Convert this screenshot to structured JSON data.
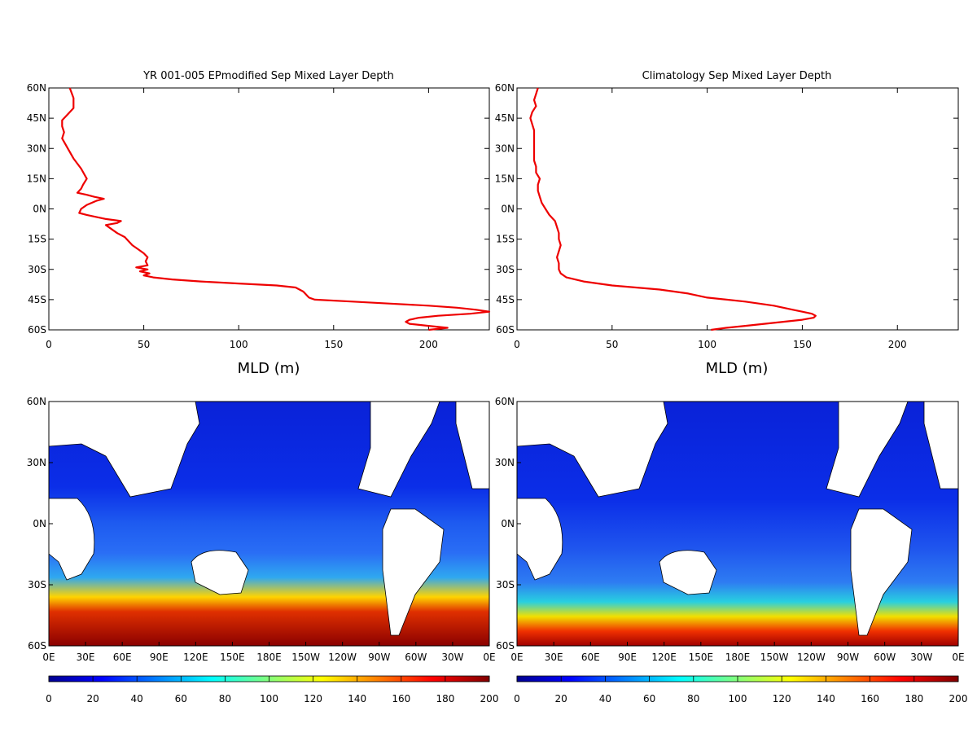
{
  "chart_data": [
    {
      "type": "line",
      "title": "YR 001-005 EPmodified Sep Mixed Layer Depth",
      "xlabel": "MLD (m)",
      "ylabel": "",
      "xlim": [
        0,
        232
      ],
      "ylim": [
        -60,
        60
      ],
      "xticks": [
        "0",
        "50",
        "100",
        "150",
        "200"
      ],
      "yticks": [
        "60N",
        "45N",
        "30N",
        "15N",
        "0N",
        "15S",
        "30S",
        "45S",
        "60S"
      ],
      "line_color": "#ee0000",
      "grid": false,
      "series": [
        {
          "lat": [
            60,
            55,
            50,
            47,
            44,
            41,
            38,
            35,
            30,
            25,
            20,
            15,
            12,
            10,
            9,
            8,
            7,
            6,
            5,
            4,
            2,
            0,
            -2,
            -3,
            -4,
            -5,
            -6,
            -7,
            -8,
            -10,
            -12,
            -14,
            -16,
            -18,
            -20,
            -22,
            -24,
            -26,
            -28,
            -29,
            -30,
            -31,
            -32,
            -33,
            -34,
            -35,
            -36,
            -37,
            -38,
            -39,
            -40,
            -41,
            -42,
            -43,
            -44,
            -45,
            -46,
            -47,
            -48,
            -49,
            -50,
            -51,
            -52,
            -53,
            -54,
            -55,
            -56,
            -57,
            -58,
            -59,
            -60
          ],
          "mld": [
            11,
            13,
            13,
            10,
            7,
            7,
            8,
            7,
            10,
            13,
            17,
            20,
            18,
            17,
            16,
            15,
            20,
            24,
            29,
            25,
            20,
            17,
            16,
            20,
            25,
            30,
            38,
            36,
            30,
            33,
            36,
            40,
            42,
            44,
            47,
            50,
            52,
            51,
            52,
            46,
            52,
            48,
            53,
            50,
            55,
            65,
            80,
            100,
            120,
            130,
            132,
            134,
            135,
            136,
            137,
            140,
            160,
            180,
            200,
            215,
            225,
            232,
            222,
            205,
            195,
            190,
            188,
            190,
            200,
            210,
            200
          ]
        }
      ]
    },
    {
      "type": "line",
      "title": "Climatology Sep Mixed Layer Depth",
      "xlabel": "MLD (m)",
      "ylabel": "",
      "xlim": [
        0,
        232
      ],
      "ylim": [
        -60,
        60
      ],
      "xticks": [
        "0",
        "50",
        "100",
        "150",
        "200"
      ],
      "yticks": [
        "60N",
        "45N",
        "30N",
        "15N",
        "0N",
        "15S",
        "30S",
        "45S",
        "60S"
      ],
      "line_color": "#ee0000",
      "grid": false,
      "series": [
        {
          "lat": [
            60,
            57,
            54,
            51,
            48,
            45,
            42,
            39,
            36,
            33,
            30,
            27,
            24,
            21,
            18,
            15,
            12,
            9,
            6,
            3,
            0,
            -3,
            -6,
            -9,
            -12,
            -15,
            -18,
            -21,
            -24,
            -27,
            -30,
            -32,
            -34,
            -36,
            -38,
            -40,
            -42,
            -44,
            -46,
            -48,
            -50,
            -51,
            -52,
            -53,
            -54,
            -55,
            -56,
            -57,
            -58,
            -59,
            -60
          ],
          "mld": [
            11,
            10,
            9,
            10,
            8,
            7,
            8,
            9,
            9,
            9,
            9,
            9,
            9,
            10,
            10,
            12,
            11,
            11,
            12,
            13,
            15,
            17,
            20,
            21,
            22,
            22,
            23,
            22,
            21,
            22,
            22,
            23,
            26,
            35,
            50,
            75,
            90,
            100,
            120,
            135,
            145,
            150,
            155,
            157,
            156,
            150,
            140,
            130,
            120,
            110,
            102
          ]
        }
      ]
    },
    {
      "type": "heatmap",
      "title": "",
      "xticks": [
        "0E",
        "30E",
        "60E",
        "90E",
        "120E",
        "150E",
        "180E",
        "150W",
        "120W",
        "90W",
        "60W",
        "30W",
        "0E"
      ],
      "yticks": [
        "60N",
        "30N",
        "0N",
        "30S",
        "60S"
      ],
      "xlim": [
        0,
        360
      ],
      "ylim": [
        -60,
        60
      ],
      "colorbar": {
        "ticks": [
          "0",
          "20",
          "40",
          "60",
          "80",
          "100",
          "120",
          "140",
          "160",
          "180",
          "200"
        ],
        "range": [
          0,
          200
        ],
        "colormap": "jet"
      }
    },
    {
      "type": "heatmap",
      "title": "",
      "xticks": [
        "0E",
        "30E",
        "60E",
        "90E",
        "120E",
        "150E",
        "180E",
        "150W",
        "120W",
        "90W",
        "60W",
        "30W",
        "0E"
      ],
      "yticks": [
        "60N",
        "30N",
        "0N",
        "30S",
        "60S"
      ],
      "xlim": [
        0,
        360
      ],
      "ylim": [
        -60,
        60
      ],
      "colorbar": {
        "ticks": [
          "0",
          "20",
          "40",
          "60",
          "80",
          "100",
          "120",
          "140",
          "160",
          "180",
          "200"
        ],
        "range": [
          0,
          200
        ],
        "colormap": "jet"
      }
    }
  ]
}
